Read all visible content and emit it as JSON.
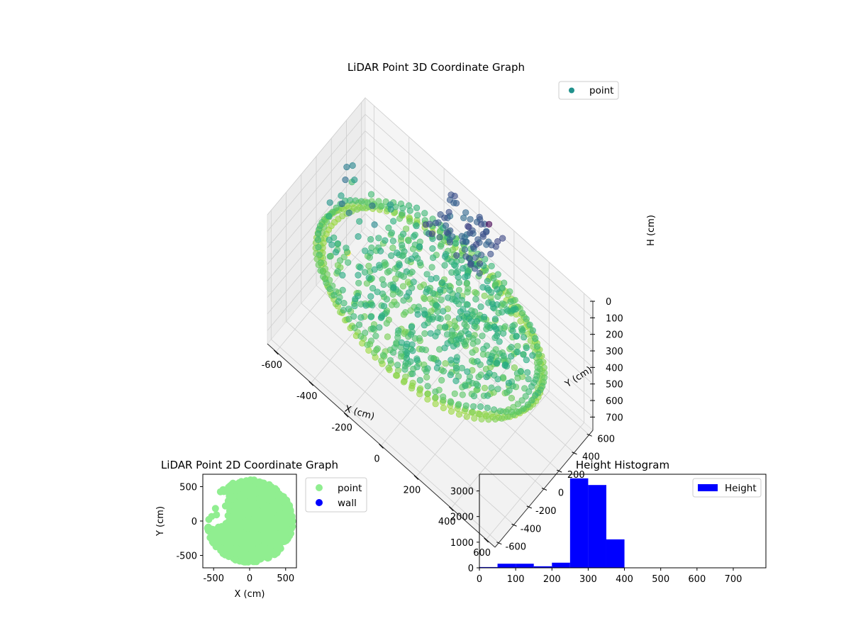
{
  "chart_data": [
    {
      "type": "scatter3d",
      "title": "LiDAR Point 3D Coordinate Graph",
      "xlabel": "X (cm)",
      "ylabel": "Y (cm)",
      "zlabel": "H (cm)",
      "xlim": [
        -650,
        650
      ],
      "ylim": [
        -650,
        650
      ],
      "zlim": [
        0,
        780
      ],
      "z_inverted": true,
      "xticks": [
        -600,
        -400,
        -200,
        0,
        200,
        400,
        600
      ],
      "yticks": [
        -600,
        -400,
        -200,
        0,
        200,
        400,
        600
      ],
      "zticks": [
        0,
        100,
        200,
        300,
        400,
        500,
        600,
        700
      ],
      "colormap": "viridis",
      "legend": {
        "position": "upper-right",
        "entries": [
          {
            "label": "point",
            "color": "#21918c"
          }
        ]
      },
      "series": [
        {
          "name": "point",
          "ring_radius": 600,
          "ring_height_range": [
            230,
            340
          ],
          "inner_height_range": [
            240,
            320
          ],
          "dense_cluster": {
            "x_range": [
              -150,
              150
            ],
            "y_range": [
              250,
              650
            ],
            "h_range": [
              80,
              150
            ]
          },
          "outliers": [
            {
              "x": -600,
              "y": 300,
              "h": 700
            },
            {
              "x": 100,
              "y": 550,
              "h": 0
            }
          ]
        }
      ],
      "grid": true
    },
    {
      "type": "scatter",
      "title": "LiDAR Point 2D Coordinate Graph",
      "xlabel": "X (cm)",
      "ylabel": "Y (cm)",
      "xlim": [
        -650,
        650
      ],
      "ylim": [
        -680,
        680
      ],
      "xticks": [
        -500,
        0,
        500
      ],
      "yticks": [
        -500,
        0,
        500
      ],
      "legend": {
        "position": "outside-right",
        "entries": [
          {
            "label": "point",
            "color": "#90ee90"
          },
          {
            "label": "wall",
            "color": "#0000ff"
          }
        ]
      },
      "series": [
        {
          "name": "point",
          "color": "#90ee90",
          "shape": "disc",
          "radius": 600,
          "notch": {
            "x_range": [
              -650,
              -350
            ],
            "y_range": [
              -100,
              450
            ]
          }
        },
        {
          "name": "wall",
          "color": "#0000ff",
          "values": []
        }
      ]
    },
    {
      "type": "histogram",
      "title": "Height Histogram",
      "xlim": [
        0,
        790
      ],
      "ylim": [
        0,
        3650
      ],
      "xticks": [
        0,
        100,
        200,
        300,
        400,
        500,
        600,
        700
      ],
      "yticks": [
        0,
        1000,
        2000,
        3000
      ],
      "legend": {
        "position": "upper-right",
        "entries": [
          {
            "label": "Height",
            "color": "#0000ff"
          }
        ]
      },
      "bin_edges": [
        0,
        50,
        100,
        150,
        200,
        250,
        300,
        350,
        400,
        450,
        500,
        550,
        600,
        650,
        700,
        750
      ],
      "series": [
        {
          "name": "Height",
          "color": "#0000ff",
          "values": [
            30,
            160,
            160,
            60,
            200,
            3490,
            3230,
            1110,
            0,
            0,
            0,
            0,
            0,
            0,
            0
          ]
        }
      ]
    }
  ]
}
